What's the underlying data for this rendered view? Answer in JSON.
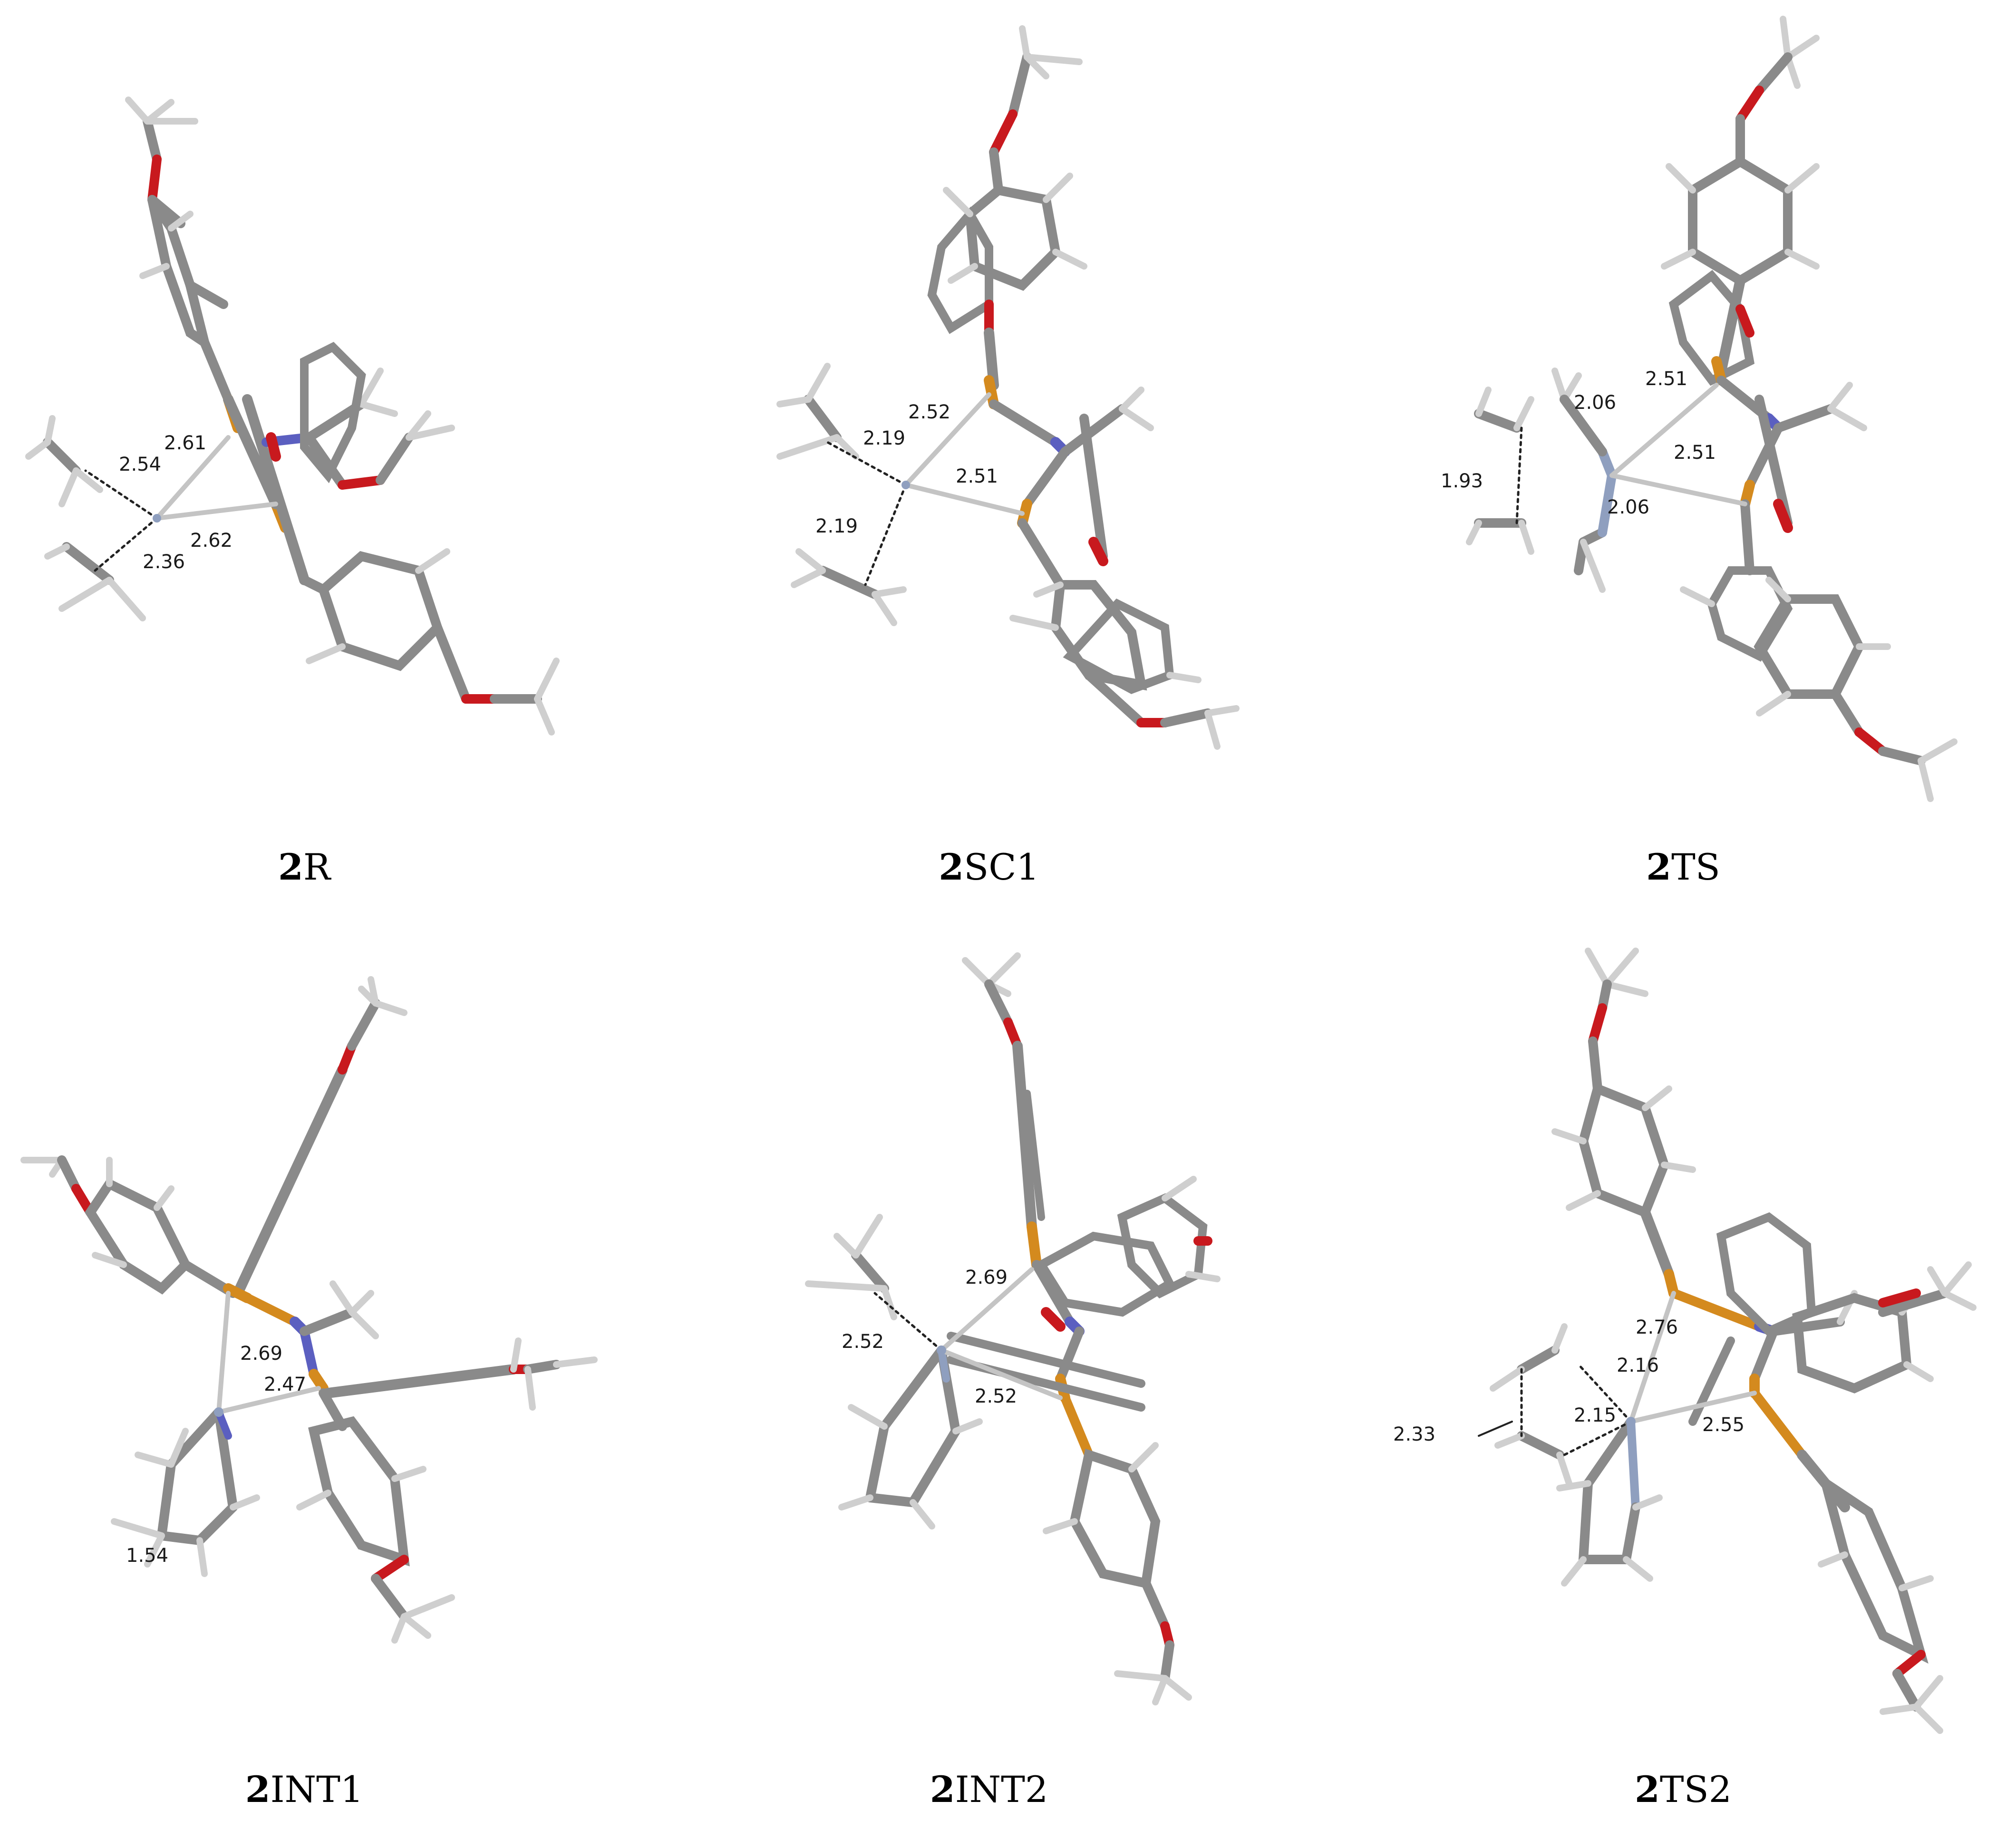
{
  "panels": [
    {
      "id": "2R",
      "caption": {
        "bold": "2",
        "rest": "R"
      },
      "distances": [
        "2.54",
        "2.61",
        "2.62",
        "2.36"
      ]
    },
    {
      "id": "2SC1",
      "caption": {
        "bold": "2",
        "rest": "SC1"
      },
      "distances": [
        "2.52",
        "2.19",
        "2.51",
        "2.19"
      ]
    },
    {
      "id": "2TS",
      "caption": {
        "bold": "2",
        "rest": "TS"
      },
      "distances": [
        "2.51",
        "2.06",
        "2.51",
        "1.93",
        "2.06"
      ]
    },
    {
      "id": "2INT1",
      "caption": {
        "bold": "2",
        "rest": "INT1"
      },
      "distances": [
        "2.69",
        "2.47",
        "1.54"
      ]
    },
    {
      "id": "2INT2",
      "caption": {
        "bold": "2",
        "rest": "INT2"
      },
      "distances": [
        "2.69",
        "2.52",
        "2.52"
      ]
    },
    {
      "id": "2TS2",
      "caption": {
        "bold": "2",
        "rest": "TS2"
      },
      "distances": [
        "2.76",
        "2.16",
        "2.15",
        "2.33",
        "2.55"
      ]
    }
  ],
  "colors": {
    "carbon": "#8a8a8a",
    "hydrogen": "#cfcfcf",
    "oxygen": "#c8191e",
    "nitrogen": "#5b5fc0",
    "phosphorus": "#d48a1e",
    "metal_n": "#8f9fbf",
    "coordination": "#c4c4c4"
  }
}
